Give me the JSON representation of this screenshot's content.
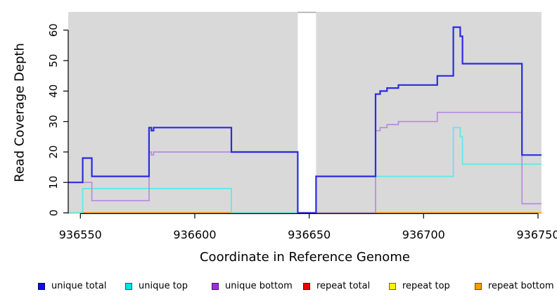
{
  "chart_data": {
    "type": "line",
    "style": "step",
    "title": "",
    "xlabel": "Coordinate in Reference Genome",
    "ylabel": "Read Coverage Depth",
    "xlim": [
      936544.7,
      936751.5
    ],
    "ylim": [
      0,
      66
    ],
    "xticks": [
      936550,
      936600,
      936650,
      936700,
      936750
    ],
    "yticks": [
      0,
      10,
      20,
      30,
      40,
      50,
      60
    ],
    "plot_background": "#d9d9d9",
    "no_data_region": [
      936645,
      936653
    ],
    "legend_position": "bottom",
    "series": [
      {
        "name": "unique total",
        "color": "#0f0fe0",
        "line_color": "#2b2be0",
        "steps": [
          [
            936544.7,
            10
          ],
          [
            936551,
            18
          ],
          [
            936555,
            12
          ],
          [
            936580,
            28
          ],
          [
            936581,
            27
          ],
          [
            936582,
            28
          ],
          [
            936616,
            20
          ],
          [
            936645,
            0
          ],
          [
            936653,
            12
          ],
          [
            936679,
            39
          ],
          [
            936681,
            40
          ],
          [
            936684,
            41
          ],
          [
            936689,
            42
          ],
          [
            936706,
            45
          ],
          [
            936713,
            61
          ],
          [
            936716,
            58
          ],
          [
            936717,
            49
          ],
          [
            936743,
            19
          ],
          [
            936751.5,
            19
          ]
        ]
      },
      {
        "name": "unique top",
        "color": "#00e5e5",
        "line_color": "#5ce9e9",
        "steps": [
          [
            936544.7,
            0
          ],
          [
            936551,
            8
          ],
          [
            936616,
            0
          ],
          [
            936653,
            12
          ],
          [
            936713,
            28
          ],
          [
            936716,
            25
          ],
          [
            936717,
            16
          ],
          [
            936751.5,
            16
          ]
        ]
      },
      {
        "name": "unique bottom",
        "color": "#9a2fe0",
        "line_color": "#b68ae0",
        "steps": [
          [
            936544.7,
            10
          ],
          [
            936555,
            4
          ],
          [
            936580,
            20
          ],
          [
            936581,
            19
          ],
          [
            936582,
            20
          ],
          [
            936645,
            0
          ],
          [
            936679,
            27
          ],
          [
            936681,
            28
          ],
          [
            936684,
            29
          ],
          [
            936689,
            30
          ],
          [
            936706,
            33
          ],
          [
            936743,
            3
          ],
          [
            936751.5,
            3
          ]
        ]
      },
      {
        "name": "repeat total",
        "color": "#ee0000",
        "line_color": "#ee0000",
        "steps": [
          [
            936544.7,
            0
          ],
          [
            936751.5,
            0
          ]
        ]
      },
      {
        "name": "repeat top",
        "color": "#fdf000",
        "line_color": "#fdf000",
        "steps": [
          [
            936544.7,
            0
          ],
          [
            936751.5,
            0
          ]
        ]
      },
      {
        "name": "repeat bottom",
        "color": "#ff9d00",
        "line_color": "#ff9d00",
        "steps": [
          [
            936544.7,
            0
          ],
          [
            936751.5,
            0
          ]
        ]
      }
    ]
  }
}
